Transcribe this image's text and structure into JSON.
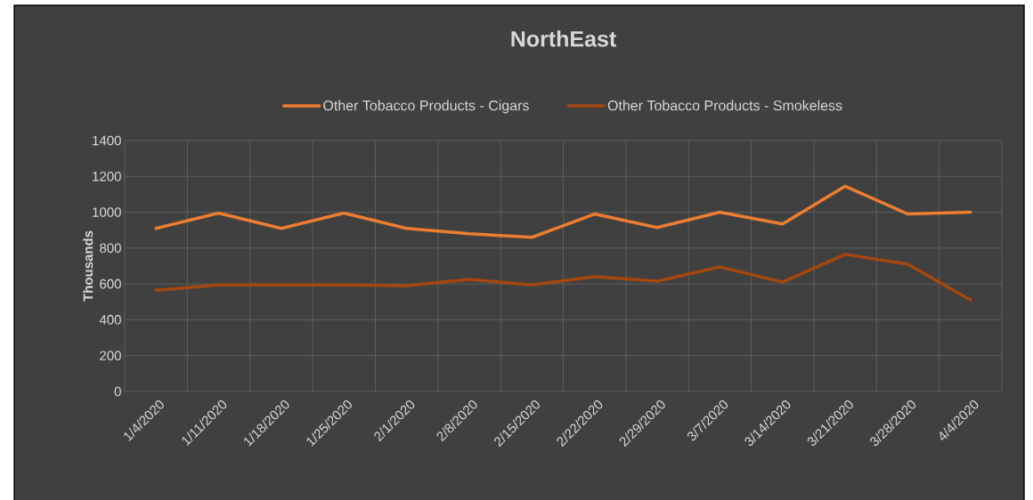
{
  "chart_data": {
    "type": "line",
    "title": "NorthEast",
    "ylabel": "Thousands",
    "categories": [
      "1/4/2020",
      "1/11/2020",
      "1/18/2020",
      "1/25/2020",
      "2/1/2020",
      "2/8/2020",
      "2/15/2020",
      "2/22/2020",
      "2/29/2020",
      "3/7/2020",
      "3/14/2020",
      "3/21/2020",
      "3/28/2020",
      "4/4/2020"
    ],
    "series": [
      {
        "name": "Other Tobacco Products - Cigars",
        "color": "#ed7d31",
        "values": [
          910,
          995,
          910,
          995,
          910,
          880,
          860,
          990,
          915,
          1000,
          935,
          1145,
          990,
          1000
        ]
      },
      {
        "name": "Other Tobacco Products - Smokeless",
        "color": "#a5470f",
        "values": [
          565,
          595,
          595,
          595,
          590,
          625,
          595,
          640,
          615,
          695,
          610,
          765,
          710,
          510
        ]
      }
    ],
    "ylim": [
      0,
      1400
    ],
    "yticks": [
      0,
      200,
      400,
      600,
      800,
      1000,
      1200,
      1400
    ],
    "grid": true,
    "legend": "top",
    "marker": "none",
    "line_style": "solid"
  }
}
